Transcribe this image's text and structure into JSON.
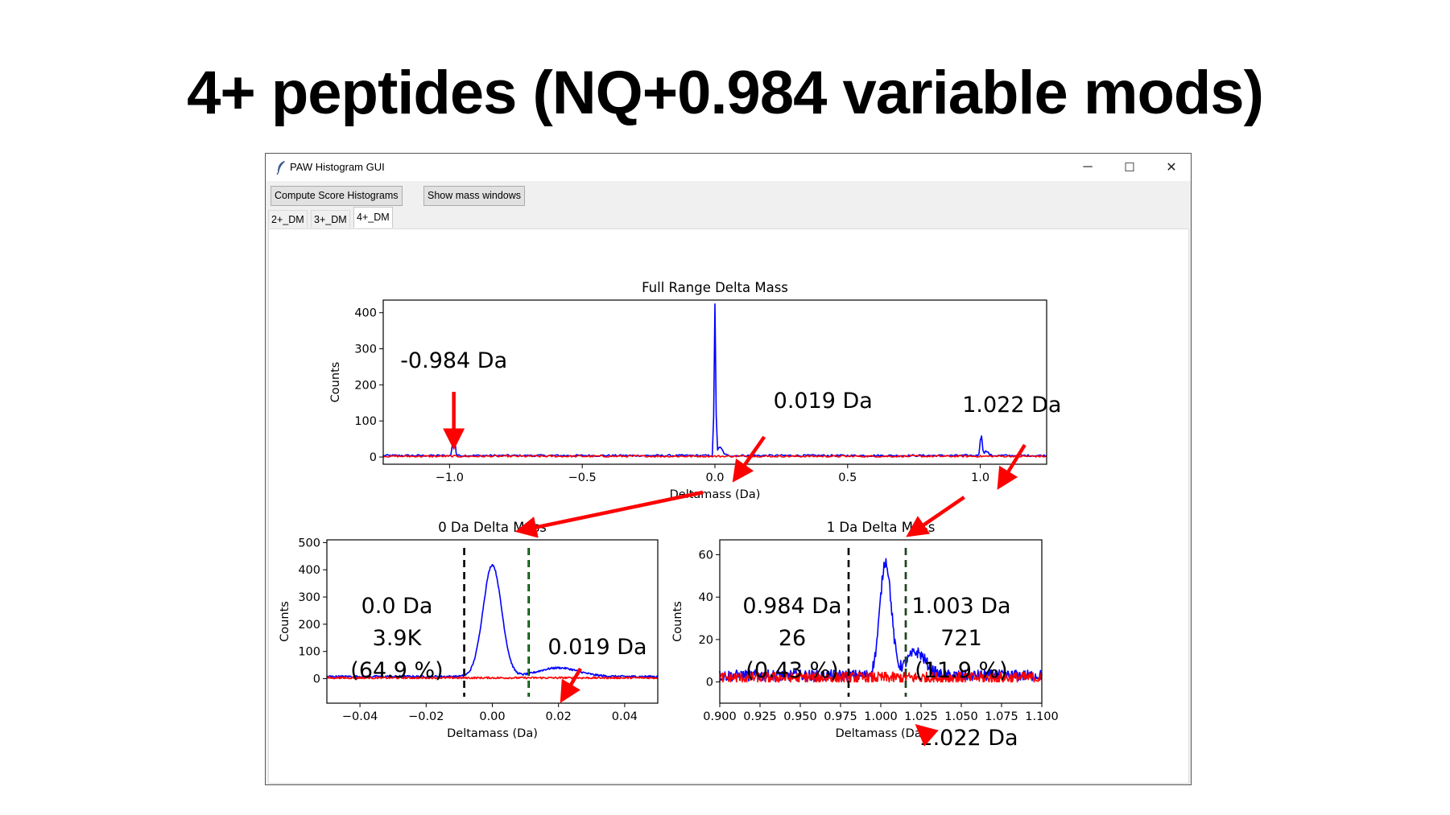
{
  "slide": {
    "title": "4+ peptides (NQ+0.984 variable mods)"
  },
  "window": {
    "title": "PAW Histogram GUI",
    "controls": {
      "minimize": "─",
      "maximize": "☐",
      "close": "✕"
    },
    "buttons": [
      "Compute Score Histograms",
      "Show mass windows"
    ],
    "tabs": [
      "2+_DM",
      "3+_DM",
      "4+_DM"
    ],
    "active_tab": 2
  },
  "colors": {
    "target": "#0000ff",
    "decoy": "#ff0000",
    "annotation": "#ff0000",
    "window_line": "#000000",
    "window_line_inner": "#2ca02c"
  },
  "chart_data": [
    {
      "type": "line",
      "title": "Full Range Delta Mass",
      "xlabel": "Deltamass (Da)",
      "ylabel": "Counts",
      "xlim": [
        -1.25,
        1.25
      ],
      "ylim": [
        -20,
        435
      ],
      "xticks": [
        -1.0,
        -0.5,
        0.0,
        0.5,
        1.0
      ],
      "xtick_labels": [
        "−1.0",
        "−0.5",
        "0.0",
        "0.5",
        "1.0"
      ],
      "yticks": [
        0,
        100,
        200,
        300,
        400
      ],
      "ytick_labels": [
        "0",
        "100",
        "200",
        "300",
        "400"
      ],
      "series": [
        {
          "color": "#0000ff",
          "peaks": [
            [
              -0.984,
              82,
              0.004
            ],
            [
              0.0,
              415,
              0.003
            ],
            [
              0.019,
              22,
              0.01
            ],
            [
              1.003,
              58,
              0.004
            ],
            [
              1.022,
              12,
              0.008
            ]
          ],
          "baseline": 4
        },
        {
          "color": "#ff0000",
          "peaks": [],
          "baseline": 2
        }
      ],
      "annotations": [
        {
          "text": "-0.984 Da",
          "x": -0.984
        },
        {
          "text": "0.019 Da",
          "x": 0.019
        },
        {
          "text": "1.022 Da",
          "x": 1.022
        }
      ]
    },
    {
      "type": "line",
      "title": "0 Da Delta Mass",
      "xlabel": "Deltamass (Da)",
      "ylabel": "Counts",
      "xlim": [
        -0.05,
        0.05
      ],
      "ylim": [
        -90,
        510
      ],
      "xticks": [
        -0.04,
        -0.02,
        0.0,
        0.02,
        0.04
      ],
      "xtick_labels": [
        "−0.04",
        "−0.02",
        "0.00",
        "0.02",
        "0.04"
      ],
      "yticks": [
        0,
        100,
        200,
        300,
        400,
        500
      ],
      "ytick_labels": [
        "0",
        "100",
        "200",
        "300",
        "400",
        "500"
      ],
      "window_lines": [
        -0.0085,
        0.011
      ],
      "series": [
        {
          "color": "#0000ff",
          "peaks": [
            [
              0.0,
              410,
              0.0028
            ],
            [
              0.02,
              32,
              0.006
            ]
          ],
          "baseline": 8
        },
        {
          "color": "#ff0000",
          "peaks": [],
          "baseline": 3
        }
      ],
      "annotations": [
        {
          "lines": [
            "0.0 Da",
            "3.9K",
            "(64.9 %)"
          ]
        },
        {
          "lines": [
            "0.019 Da"
          ]
        }
      ]
    },
    {
      "type": "line",
      "title": "1 Da Delta Mass",
      "xlabel": "Deltamass (Da)",
      "ylabel": "Counts",
      "xlim": [
        0.9,
        1.1
      ],
      "ylim": [
        -10,
        67
      ],
      "xticks": [
        0.9,
        0.925,
        0.95,
        0.975,
        1.0,
        1.025,
        1.05,
        1.075,
        1.1
      ],
      "xtick_labels": [
        "0.900",
        "0.925",
        "0.950",
        "0.975",
        "1.000",
        "1.025",
        "1.050",
        "1.075",
        "1.100"
      ],
      "yticks": [
        0,
        20,
        40,
        60
      ],
      "ytick_labels": [
        "0",
        "20",
        "40",
        "60"
      ],
      "window_lines": [
        0.98,
        1.0155
      ],
      "series": [
        {
          "color": "#0000ff",
          "peaks": [
            [
              1.003,
              54,
              0.0035
            ],
            [
              1.022,
              11,
              0.006
            ]
          ],
          "baseline": 3
        },
        {
          "color": "#ff0000",
          "peaks": [],
          "baseline": 2
        }
      ],
      "annotations": [
        {
          "lines": [
            "0.984 Da",
            "26",
            "(0.43 %)"
          ]
        },
        {
          "lines": [
            "1.003 Da",
            "721",
            "(11.9 %)"
          ]
        },
        {
          "lines": [
            "1.022 Da"
          ]
        }
      ]
    }
  ]
}
